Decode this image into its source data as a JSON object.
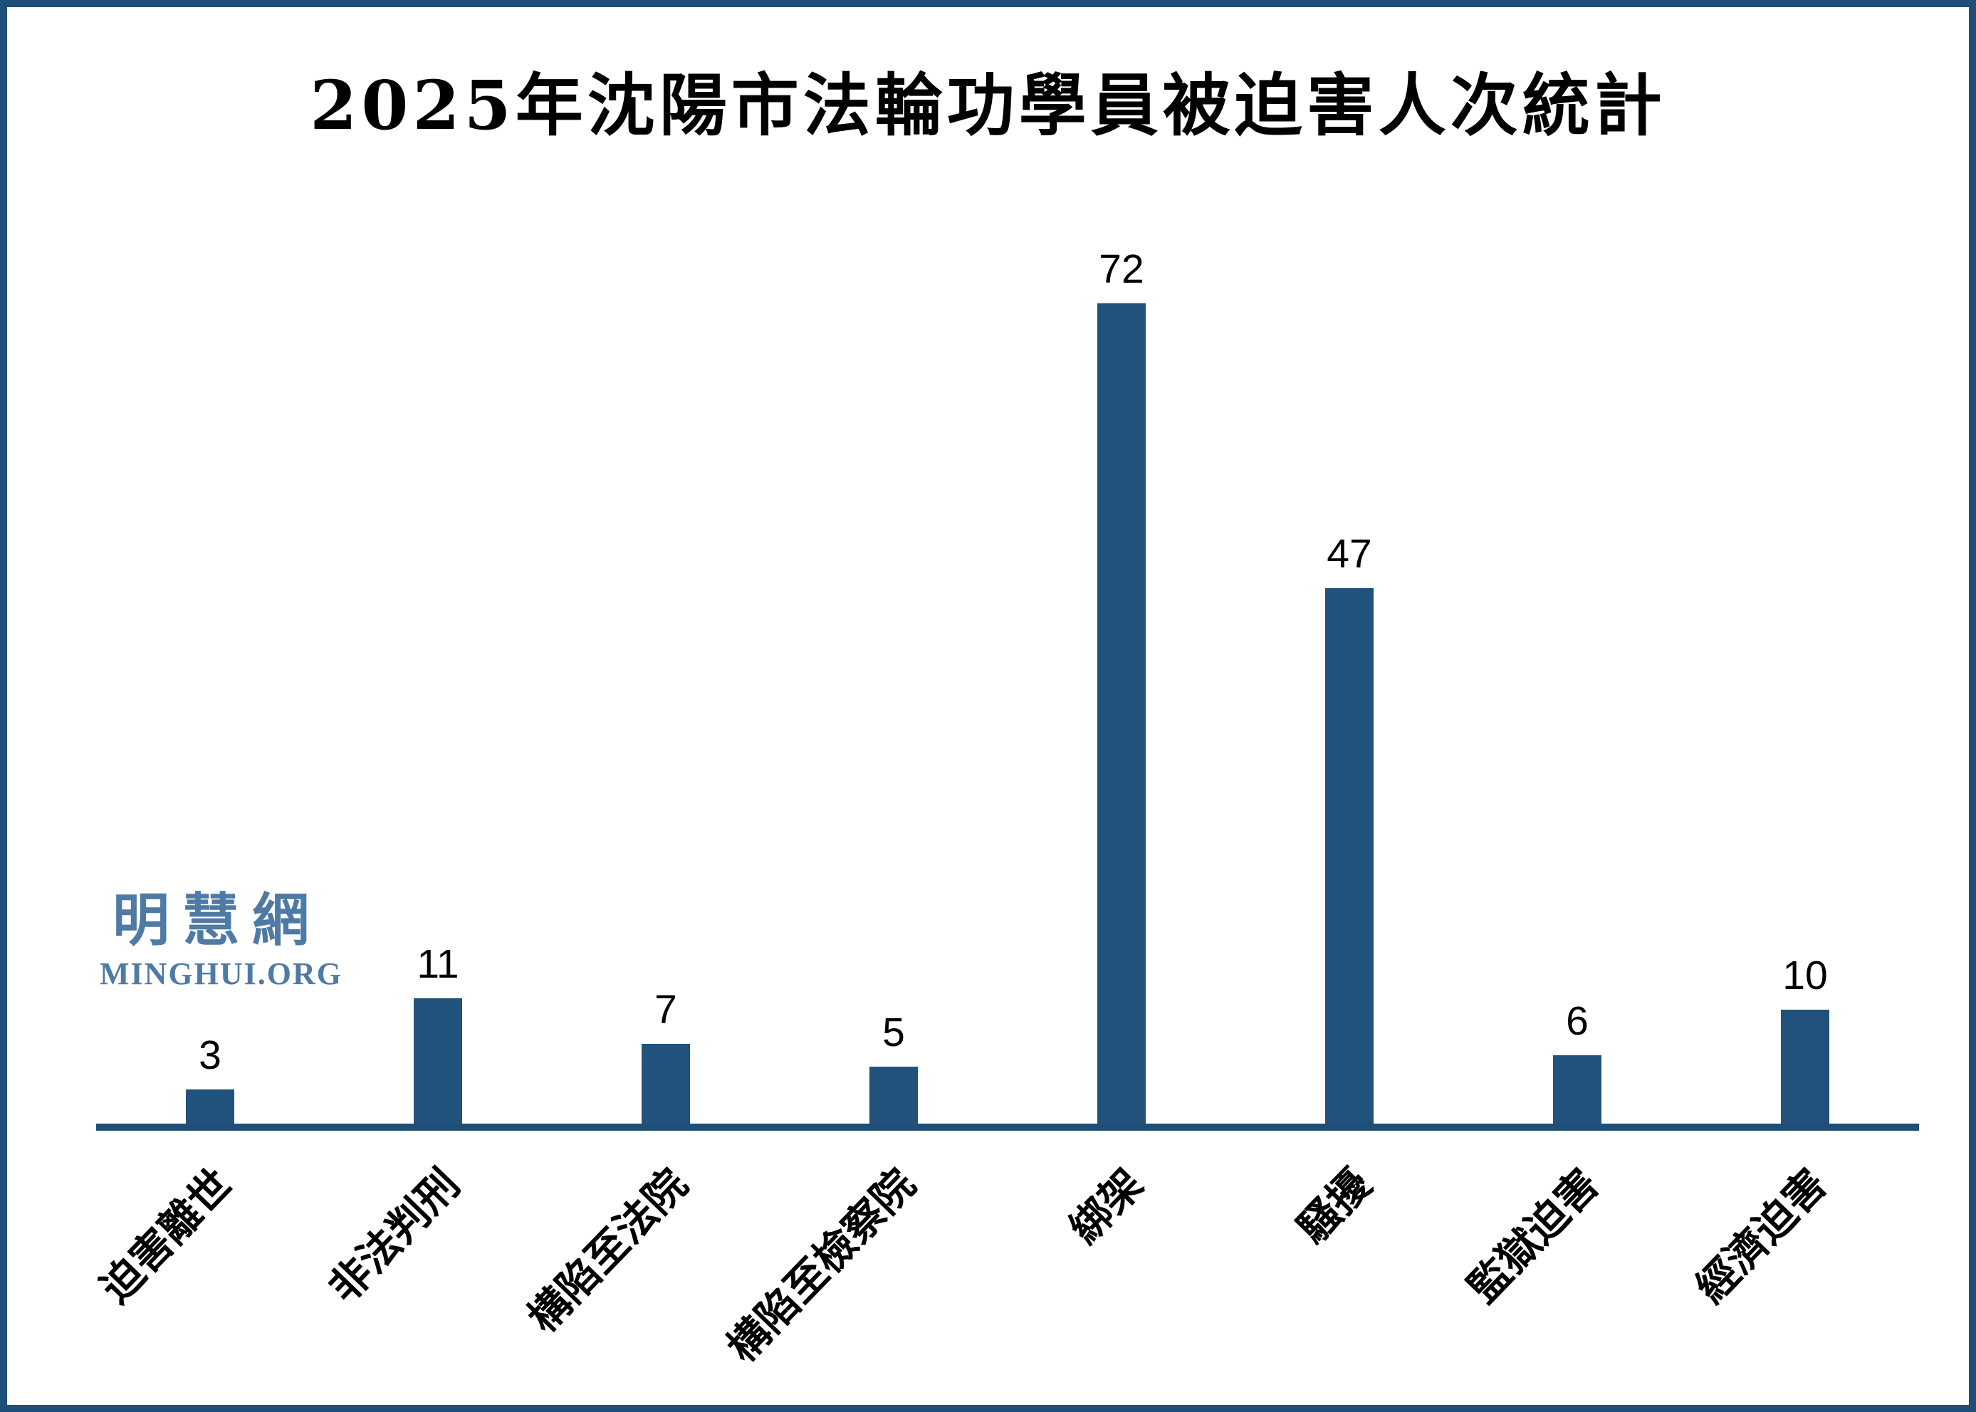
{
  "page": {
    "background": "#FFFFFF",
    "border_color": "#1F4E79"
  },
  "title": "2025年沈陽市法輪功學員被迫害人次統計",
  "watermark": {
    "cjk": "明慧網",
    "latin": "MINGHUI.ORG",
    "color": "#4e7aa5"
  },
  "chart_data": {
    "type": "bar",
    "title": "2025年沈陽市法輪功學員被迫害人次統計",
    "categories": [
      "迫害離世",
      "非法判刑",
      "構陷至法院",
      "構陷至檢察院",
      "綁架",
      "騷擾",
      "監獄迫害",
      "經濟迫害"
    ],
    "values": [
      3,
      11,
      7,
      5,
      72,
      47,
      6,
      10
    ],
    "xlabel": "",
    "ylabel": "",
    "ylim": [
      0,
      75
    ],
    "grid": false,
    "legend": false,
    "data_labels": true,
    "category_label_rotation_deg": -46,
    "bar_color": "#21527B",
    "axis_color": "#1F4E79",
    "label_color": "#000000"
  }
}
